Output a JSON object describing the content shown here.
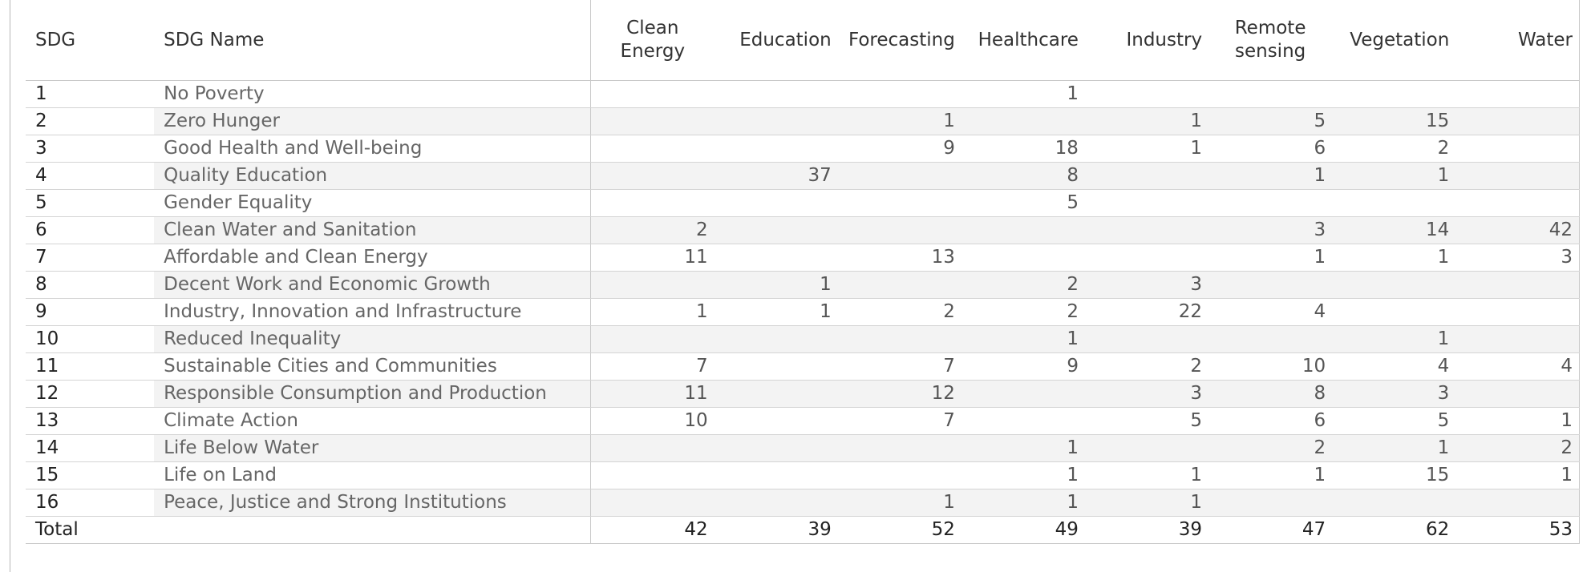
{
  "chart_data": {
    "type": "table",
    "header": {
      "sdg": "SDG",
      "sdg_name": "SDG Name",
      "columns": [
        [
          "Clean",
          "Energy"
        ],
        [
          "Education"
        ],
        [
          "Forecasting"
        ],
        [
          "Healthcare"
        ],
        [
          "Industry"
        ],
        [
          "Remote",
          "sensing"
        ],
        [
          "Vegetation"
        ],
        [
          "Water"
        ]
      ]
    },
    "rows": [
      {
        "sdg": "1",
        "name": "No Poverty",
        "values": [
          "",
          "",
          "",
          "1",
          "",
          "",
          "",
          ""
        ]
      },
      {
        "sdg": "2",
        "name": "Zero Hunger",
        "values": [
          "",
          "",
          "1",
          "",
          "1",
          "5",
          "15",
          ""
        ]
      },
      {
        "sdg": "3",
        "name": "Good Health and Well-being",
        "values": [
          "",
          "",
          "9",
          "18",
          "1",
          "6",
          "2",
          ""
        ]
      },
      {
        "sdg": "4",
        "name": "Quality Education",
        "values": [
          "",
          "37",
          "",
          "8",
          "",
          "1",
          "1",
          ""
        ]
      },
      {
        "sdg": "5",
        "name": "Gender Equality",
        "values": [
          "",
          "",
          "",
          "5",
          "",
          "",
          "",
          ""
        ]
      },
      {
        "sdg": "6",
        "name": "Clean Water and Sanitation",
        "values": [
          "2",
          "",
          "",
          "",
          "",
          "3",
          "14",
          "42"
        ]
      },
      {
        "sdg": "7",
        "name": "Affordable and Clean Energy",
        "values": [
          "11",
          "",
          "13",
          "",
          "",
          "1",
          "1",
          "3"
        ]
      },
      {
        "sdg": "8",
        "name": "Decent Work and Economic Growth",
        "values": [
          "",
          "1",
          "",
          "2",
          "3",
          "",
          "",
          ""
        ]
      },
      {
        "sdg": "9",
        "name": "Industry, Innovation and Infrastructure",
        "values": [
          "1",
          "1",
          "2",
          "2",
          "22",
          "4",
          "",
          ""
        ]
      },
      {
        "sdg": "10",
        "name": "Reduced Inequality",
        "values": [
          "",
          "",
          "",
          "1",
          "",
          "",
          "1",
          ""
        ]
      },
      {
        "sdg": "11",
        "name": "Sustainable Cities and Communities",
        "values": [
          "7",
          "",
          "7",
          "9",
          "2",
          "10",
          "4",
          "4"
        ]
      },
      {
        "sdg": "12",
        "name": "Responsible Consumption and Production",
        "values": [
          "11",
          "",
          "12",
          "",
          "3",
          "8",
          "3",
          ""
        ]
      },
      {
        "sdg": "13",
        "name": "Climate Action",
        "values": [
          "10",
          "",
          "7",
          "",
          "5",
          "6",
          "5",
          "1"
        ]
      },
      {
        "sdg": "14",
        "name": "Life Below Water",
        "values": [
          "",
          "",
          "",
          "1",
          "",
          "2",
          "1",
          "2"
        ]
      },
      {
        "sdg": "15",
        "name": "Life on Land",
        "values": [
          "",
          "",
          "",
          "1",
          "1",
          "1",
          "15",
          "1"
        ]
      },
      {
        "sdg": "16",
        "name": "Peace, Justice and Strong Institutions",
        "values": [
          "",
          "",
          "1",
          "1",
          "1",
          "",
          "",
          ""
        ]
      }
    ],
    "total": {
      "label": "Total",
      "values": [
        "42",
        "39",
        "52",
        "49",
        "39",
        "47",
        "62",
        "53"
      ]
    },
    "colors": {
      "alt_row_background": "#f3f3f3",
      "text": "#333333",
      "name_text": "#666666",
      "gridline": "#d4d4d4"
    }
  }
}
